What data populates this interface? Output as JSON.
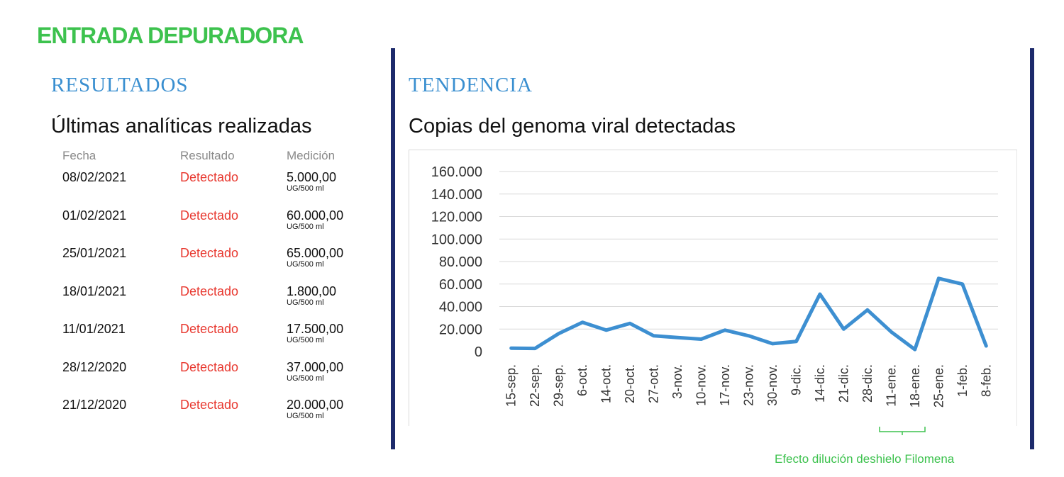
{
  "page": {
    "title": "ENTRADA DEPURADORA"
  },
  "results": {
    "heading": "RESULTADOS",
    "subheading": "Últimas analíticas realizadas",
    "columns": [
      "Fecha",
      "Resultado",
      "Medición"
    ],
    "rows": [
      {
        "date": "08/02/2021",
        "status": "Detectado",
        "value": "5.000,00",
        "unit": "UG/500 ml"
      },
      {
        "date": "01/02/2021",
        "status": "Detectado",
        "value": "60.000,00",
        "unit": "UG/500 ml"
      },
      {
        "date": "25/01/2021",
        "status": "Detectado",
        "value": "65.000,00",
        "unit": "UG/500 ml"
      },
      {
        "date": "18/01/2021",
        "status": "Detectado",
        "value": "1.800,00",
        "unit": "UG/500 ml"
      },
      {
        "date": "11/01/2021",
        "status": "Detectado",
        "value": "17.500,00",
        "unit": "UG/500 ml"
      },
      {
        "date": "28/12/2020",
        "status": "Detectado",
        "value": "37.000,00",
        "unit": "UG/500 ml"
      },
      {
        "date": "21/12/2020",
        "status": "Detectado",
        "value": "20.000,00",
        "unit": "UG/500 ml"
      }
    ]
  },
  "trend": {
    "heading": "TENDENCIA",
    "subheading": "Copias del genoma viral detectadas",
    "annotation": "Efecto dilución deshielo Filomena"
  },
  "colors": {
    "title_green": "#3dc24e",
    "section_blue": "#3a8fd0",
    "status_red": "#e8382f",
    "divider_navy": "#1d2a6b",
    "series_blue": "#3d8fd1",
    "grid": "#d9d9d9"
  },
  "chart_data": {
    "type": "line",
    "title": "Copias del genoma viral detectadas",
    "xlabel": "",
    "ylabel": "",
    "categories": [
      "15-sep.",
      "22-sep.",
      "29-sep.",
      "6-oct.",
      "14-oct.",
      "20-oct.",
      "27-oct.",
      "3-nov.",
      "10-nov.",
      "17-nov.",
      "23-nov.",
      "30-nov.",
      "9-dic.",
      "14-dic.",
      "21-dic.",
      "28-dic.",
      "11-ene.",
      "18-ene.",
      "25-ene.",
      "1-feb.",
      "8-feb."
    ],
    "y_tick_labels": [
      "0",
      "20.000",
      "40.000",
      "60.000",
      "80.000",
      "100.000",
      "120.000",
      "140.000",
      "160.000"
    ],
    "series": [
      {
        "values": [
          3000,
          2800,
          16000,
          26000,
          19000,
          25000,
          14000,
          12500,
          11000,
          19000,
          14000,
          7000,
          9000,
          51000,
          20000,
          37000,
          17500,
          1800,
          65000,
          60000,
          5000
        ]
      }
    ],
    "ylim": [
      0,
      160000
    ],
    "grid": true,
    "legend": "none"
  }
}
